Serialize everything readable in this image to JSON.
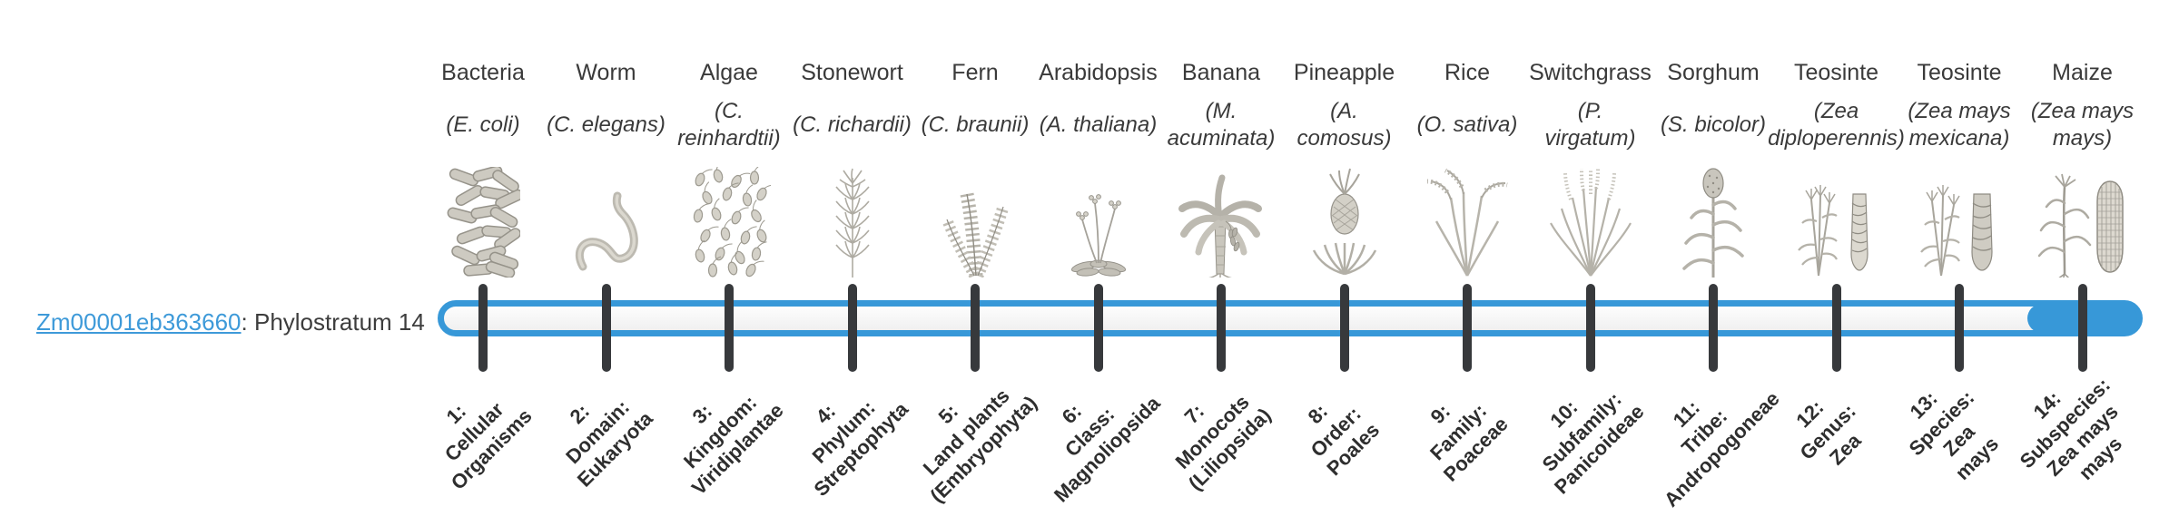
{
  "colors": {
    "accent": "#3798d8",
    "link": "#3e9ad9",
    "tick": "#37393c"
  },
  "gene": {
    "id": "Zm00001eb363660",
    "suffix": ": Phylostratum 14",
    "phylostratum": 14
  },
  "bar": {
    "total_strata": 14,
    "filled_stratum": 14
  },
  "strata": [
    {
      "number": 1,
      "taxon_common": "Bacteria",
      "taxon_latin": "(E. coli)",
      "icon": "bacteria-icon",
      "label": "1:\nCellular\nOrganisms"
    },
    {
      "number": 2,
      "taxon_common": "Worm",
      "taxon_latin": "(C. elegans)",
      "icon": "worm-icon",
      "label": "2:\nDomain:\nEukaryota"
    },
    {
      "number": 3,
      "taxon_common": "Algae",
      "taxon_latin": "(C.\nreinhardtii)",
      "icon": "algae-icon",
      "label": "3:\nKingdom:\nViridiplantae"
    },
    {
      "number": 4,
      "taxon_common": "Stonewort",
      "taxon_latin": "(C. richardii)",
      "icon": "stonewort-icon",
      "label": "4:\nPhylum:\nStreptophyta"
    },
    {
      "number": 5,
      "taxon_common": "Fern",
      "taxon_latin": "(C. braunii)",
      "icon": "fern-icon",
      "label": "5:\nLand plants\n(Embryophyta)"
    },
    {
      "number": 6,
      "taxon_common": "Arabidopsis",
      "taxon_latin": "(A. thaliana)",
      "icon": "arabidopsis-icon",
      "label": "6:\nClass:\nMagnoliopsida"
    },
    {
      "number": 7,
      "taxon_common": "Banana",
      "taxon_latin": "(M.\nacuminata)",
      "icon": "banana-icon",
      "label": "7:\nMonocots\n(Liliopsida)"
    },
    {
      "number": 8,
      "taxon_common": "Pineapple",
      "taxon_latin": "(A.\ncomosus)",
      "icon": "pineapple-icon",
      "label": "8:\nOrder:\nPoales"
    },
    {
      "number": 9,
      "taxon_common": "Rice",
      "taxon_latin": "(O. sativa)",
      "icon": "rice-icon",
      "label": "9:\nFamily:\nPoaceae"
    },
    {
      "number": 10,
      "taxon_common": "Switchgrass",
      "taxon_latin": "(P.\nvirgatum)",
      "icon": "switchgrass-icon",
      "label": "10:\nSubfamily:\nPanicoideae"
    },
    {
      "number": 11,
      "taxon_common": "Sorghum",
      "taxon_latin": "(S. bicolor)",
      "icon": "sorghum-icon",
      "label": "11:\nTribe:\nAndropogoneae"
    },
    {
      "number": 12,
      "taxon_common": "Teosinte",
      "taxon_latin": "(Zea\ndiploperennis)",
      "icon": "teosinte-diploperennis-icon",
      "label": "12:\nGenus:\nZea"
    },
    {
      "number": 13,
      "taxon_common": "Teosinte",
      "taxon_latin": "(Zea mays\nmexicana)",
      "icon": "teosinte-mexicana-icon",
      "label": "13:\nSpecies:\nZea\nmays"
    },
    {
      "number": 14,
      "taxon_common": "Maize",
      "taxon_latin": "(Zea mays\nmays)",
      "icon": "maize-icon",
      "label": "14:\nSubspecies:\nZea mays\nmays"
    }
  ]
}
